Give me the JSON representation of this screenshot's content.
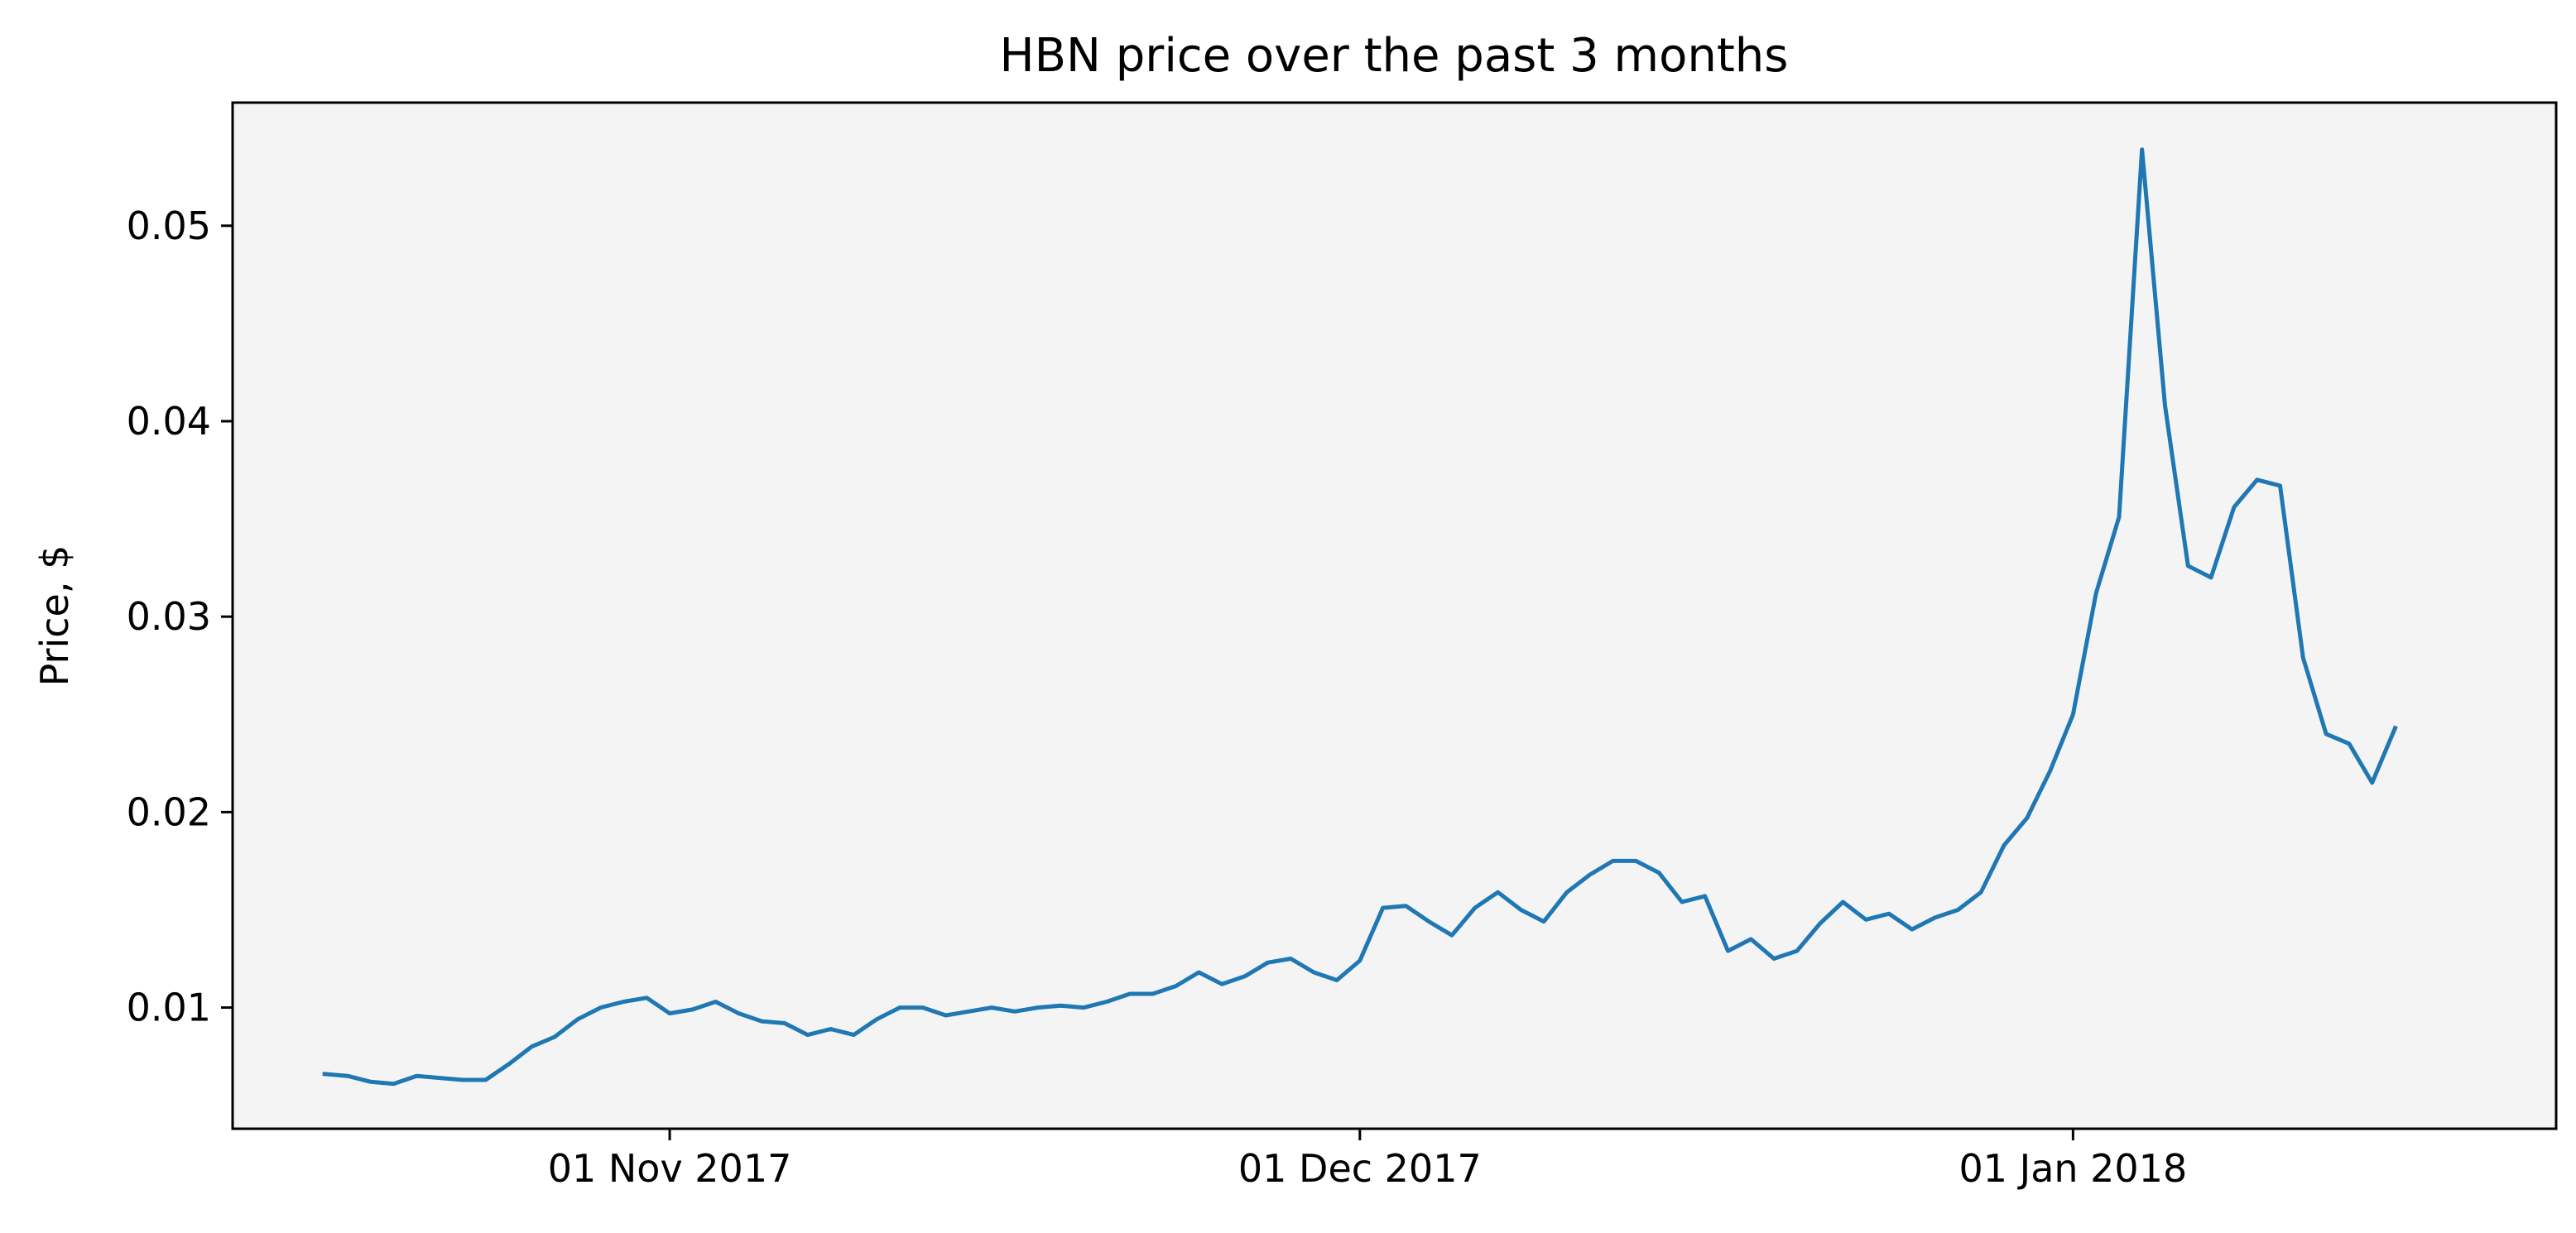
{
  "chart_data": {
    "type": "line",
    "title": "HBN price over the past 3 months",
    "xlabel": "",
    "ylabel": "Price, $",
    "x_axis_type": "date",
    "x_start": "2017-10-17",
    "x_step_days": 1,
    "xlim": [
      "2017-10-13",
      "2018-01-22"
    ],
    "ylim": [
      0.0038,
      0.0563
    ],
    "x_ticks": [
      {
        "date": "2017-11-01",
        "label": "01 Nov 2017"
      },
      {
        "date": "2017-12-01",
        "label": "01 Dec 2017"
      },
      {
        "date": "2018-01-01",
        "label": "01 Jan 2018"
      }
    ],
    "y_ticks": [
      {
        "value": 0.01,
        "label": "0.01"
      },
      {
        "value": 0.02,
        "label": "0.02"
      },
      {
        "value": 0.03,
        "label": "0.03"
      },
      {
        "value": 0.04,
        "label": "0.04"
      },
      {
        "value": 0.05,
        "label": "0.05"
      }
    ],
    "grid": false,
    "background_color": "#f4f4f4",
    "series": [
      {
        "color": "#1f77b4",
        "values": [
          0.0066,
          0.0065,
          0.0062,
          0.0061,
          0.0065,
          0.0064,
          0.0063,
          0.0063,
          0.0071,
          0.008,
          0.0085,
          0.0094,
          0.01,
          0.0103,
          0.0105,
          0.0097,
          0.0099,
          0.0103,
          0.0097,
          0.0093,
          0.0092,
          0.0086,
          0.0089,
          0.0086,
          0.0094,
          0.01,
          0.01,
          0.0096,
          0.0098,
          0.01,
          0.0098,
          0.01,
          0.0101,
          0.01,
          0.0103,
          0.0107,
          0.0107,
          0.0111,
          0.0118,
          0.0112,
          0.0116,
          0.0123,
          0.0125,
          0.0118,
          0.0114,
          0.0124,
          0.0151,
          0.0152,
          0.0144,
          0.0137,
          0.0151,
          0.0159,
          0.015,
          0.0144,
          0.0159,
          0.0168,
          0.0175,
          0.0175,
          0.0169,
          0.0154,
          0.0157,
          0.0129,
          0.0135,
          0.0125,
          0.0129,
          0.0143,
          0.0154,
          0.0145,
          0.0148,
          0.014,
          0.0146,
          0.015,
          0.0159,
          0.0183,
          0.0197,
          0.0221,
          0.025,
          0.0312,
          0.0351,
          0.0539,
          0.0408,
          0.0326,
          0.032,
          0.0356,
          0.037,
          0.0367,
          0.0279,
          0.024,
          0.0235,
          0.0215,
          0.0243
        ]
      }
    ]
  }
}
